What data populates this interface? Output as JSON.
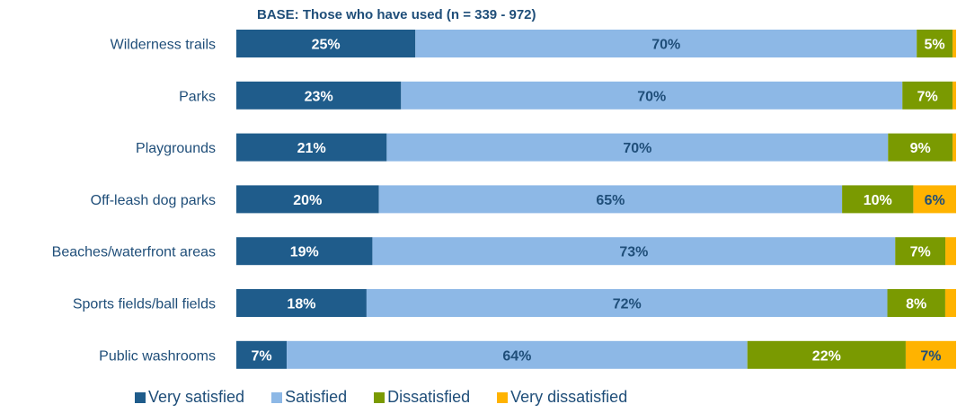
{
  "base_note": "BASE: Those who have used (n = 339 - 972)",
  "chart_data": {
    "type": "bar",
    "orientation": "horizontal",
    "stacked": true,
    "stack_mode": "percent",
    "categories": [
      "Wilderness trails",
      "Parks",
      "Playgrounds",
      "Off-leash dog parks",
      "Beaches/waterfront areas",
      "Sports fields/ball fields",
      "Public washrooms"
    ],
    "series": [
      {
        "name": "Very satisfied",
        "color": "#1f5c8b",
        "label_color": "#ffffff",
        "values": [
          25,
          23,
          21,
          20,
          19,
          18,
          7
        ]
      },
      {
        "name": "Satisfied",
        "color": "#8db8e6",
        "label_color": "#1f4e79",
        "values": [
          70,
          70,
          70,
          65,
          73,
          72,
          64
        ]
      },
      {
        "name": "Dissatisfied",
        "color": "#7a9a01",
        "label_color": "#ffffff",
        "values": [
          5,
          7,
          9,
          10,
          7,
          8,
          22
        ]
      },
      {
        "name": "Very dissatisfied",
        "color": "#ffb300",
        "label_color": "#1f4e79",
        "values": [
          0.5,
          0.5,
          0.5,
          6,
          1.5,
          1.5,
          7
        ]
      }
    ],
    "data_labels": [
      [
        "25%",
        "70%",
        "5%",
        ""
      ],
      [
        "23%",
        "70%",
        "7%",
        ""
      ],
      [
        "21%",
        "70%",
        "9%",
        ""
      ],
      [
        "20%",
        "65%",
        "10%",
        "6%"
      ],
      [
        "19%",
        "73%",
        "7%",
        ""
      ],
      [
        "18%",
        "72%",
        "8%",
        ""
      ],
      [
        "7%",
        "64%",
        "22%",
        "7%"
      ]
    ],
    "legend_position": "bottom",
    "grid": false
  }
}
